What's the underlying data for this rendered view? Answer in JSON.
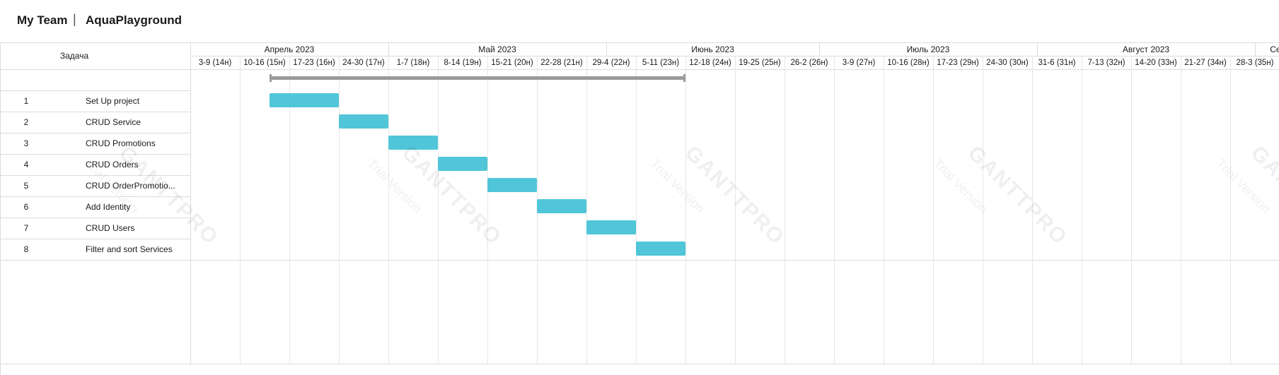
{
  "header": {
    "team": "My Team",
    "separator": "|",
    "project": "AquaPlayground"
  },
  "gantt": {
    "task_column_label": "Задача",
    "months": [
      {
        "label": "Апрель 2023",
        "start_week": 0,
        "weeks": 4
      },
      {
        "label": "Май 2023",
        "start_week": 4,
        "weeks": 4.4
      },
      {
        "label": "Июнь 2023",
        "start_week": 8.4,
        "weeks": 4.3
      },
      {
        "label": "Июль 2023",
        "start_week": 12.7,
        "weeks": 4.4
      },
      {
        "label": "Август 2023",
        "start_week": 17.1,
        "weeks": 4.4
      },
      {
        "label": "Сент",
        "start_week": 21.5,
        "weeks": 1
      }
    ],
    "weeks": [
      "3-9 (14н)",
      "10-16 (15н)",
      "17-23 (16н)",
      "24-30 (17н)",
      "1-7 (18н)",
      "8-14 (19н)",
      "15-21 (20н)",
      "22-28 (21н)",
      "29-4 (22н)",
      "5-11 (23н)",
      "12-18 (24н)",
      "19-25 (25н)",
      "26-2 (26н)",
      "3-9 (27н)",
      "10-16 (28н)",
      "17-23 (29н)",
      "24-30 (30н)",
      "31-6 (31н)",
      "7-13 (32н)",
      "14-20 (33н)",
      "21-27 (34н)",
      "28-3 (35н)"
    ],
    "project_span": {
      "start": 1.6,
      "end": 10.0
    },
    "tasks": [
      {
        "num": "1",
        "name": "Set Up project",
        "start": 1.6,
        "end": 3.0
      },
      {
        "num": "2",
        "name": "CRUD Service",
        "start": 3.0,
        "end": 4.0
      },
      {
        "num": "3",
        "name": "CRUD Promotions",
        "start": 4.0,
        "end": 5.0
      },
      {
        "num": "4",
        "name": "CRUD Orders",
        "start": 5.0,
        "end": 6.0
      },
      {
        "num": "5",
        "name": "CRUD OrderPromotio...",
        "start": 6.0,
        "end": 7.0
      },
      {
        "num": "6",
        "name": "Add Identity",
        "start": 7.0,
        "end": 8.0
      },
      {
        "num": "7",
        "name": "CRUD Users",
        "start": 8.0,
        "end": 9.0
      },
      {
        "num": "8",
        "name": "Filter and sort Services",
        "start": 9.0,
        "end": 10.0
      }
    ],
    "colors": {
      "task_bar": "#50c6d8",
      "summary_bar": "#9a9a9a",
      "grid": "#e6e6e6"
    }
  },
  "watermark": {
    "brand": "GANTTPRO",
    "text": "Trial Version"
  }
}
